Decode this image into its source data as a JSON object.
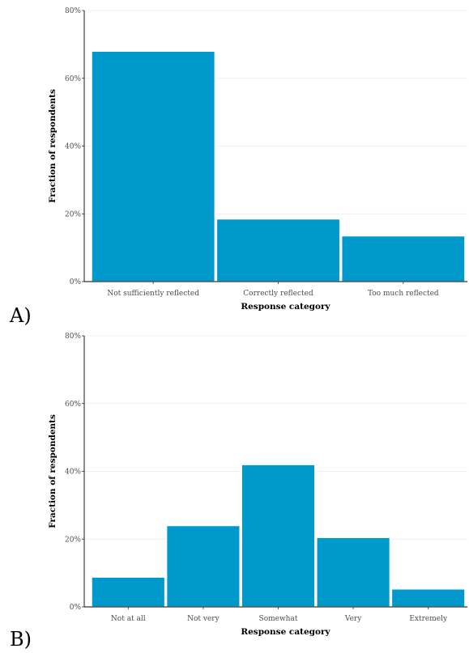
{
  "colors": {
    "bar": "#0099cc"
  },
  "chart_data": [
    {
      "panel": "A)",
      "type": "bar",
      "categories": [
        "Not sufficiently reflected",
        "Correctly reflected",
        "Too much reflected"
      ],
      "values": [
        68,
        18.5,
        13.5
      ],
      "xlabel": "Response category",
      "ylabel": "Fraction of respondents",
      "ylim": [
        0,
        80
      ],
      "yticks": [
        "0%",
        "20%",
        "40%",
        "60%",
        "80%"
      ],
      "grid": true
    },
    {
      "panel": "B)",
      "type": "bar",
      "categories": [
        "Not at all",
        "Not very",
        "Somewhat",
        "Very",
        "Extremely"
      ],
      "values": [
        8.8,
        24,
        42,
        20.5,
        5.3
      ],
      "xlabel": "Response category",
      "ylabel": "Fraction of respondents",
      "ylim": [
        0,
        80
      ],
      "yticks": [
        "0%",
        "20%",
        "40%",
        "60%",
        "80%"
      ],
      "grid": true
    }
  ]
}
